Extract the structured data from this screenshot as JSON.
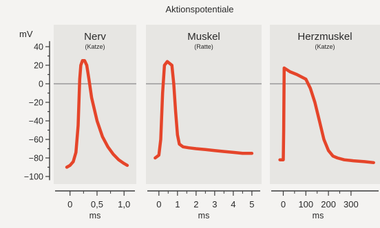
{
  "figure": {
    "title": "Aktionspotentiale",
    "y_unit": "mV",
    "x_unit": "ms"
  },
  "colors": {
    "background": "#f4f3f1",
    "panel": "#e7e6e3",
    "curve": "#e5452a",
    "axis": "#3a3a3a",
    "zero_line": "#8a8a8a"
  },
  "chart_data": [
    {
      "type": "line",
      "title": "Nerv",
      "subtitle": "(Katze)",
      "ylabel": "mV",
      "xlabel": "ms",
      "ylim": [
        -105,
        45
      ],
      "xlim": [
        -0.2,
        1.15
      ],
      "yticks": [
        40,
        20,
        0,
        -20,
        -40,
        -60,
        -80,
        -100
      ],
      "ytick_labels": [
        "40",
        "20",
        "0",
        "−20",
        "−40",
        "−60",
        "−80",
        "−100"
      ],
      "xticks": [
        0,
        0.5,
        1.0
      ],
      "xtick_labels": [
        "0",
        "0,5",
        "1,0"
      ],
      "series": [
        {
          "x": [
            -0.06,
            0.0,
            0.06,
            0.11,
            0.15,
            0.18,
            0.2,
            0.23,
            0.27,
            0.31,
            0.35,
            0.4,
            0.5,
            0.6,
            0.7,
            0.8,
            0.9,
            1.0,
            1.06
          ],
          "y": [
            -90,
            -88,
            -84,
            -74,
            -45,
            5,
            20,
            25,
            25,
            20,
            5,
            -15,
            -40,
            -57,
            -68,
            -76,
            -82,
            -86,
            -88
          ]
        }
      ]
    },
    {
      "type": "line",
      "title": "Muskel",
      "subtitle": "(Ratte)",
      "xlabel": "ms",
      "ylim": [
        -105,
        45
      ],
      "xlim": [
        -0.4,
        5.3
      ],
      "xticks": [
        0,
        1,
        2,
        3,
        4,
        5
      ],
      "xtick_labels": [
        "0",
        "1",
        "2",
        "3",
        "4",
        "5"
      ],
      "series": [
        {
          "x": [
            -0.2,
            0.0,
            0.1,
            0.2,
            0.3,
            0.45,
            0.7,
            0.8,
            0.9,
            1.0,
            1.1,
            1.3,
            1.6,
            2.0,
            2.5,
            3.0,
            3.5,
            4.0,
            4.5,
            5.0
          ],
          "y": [
            -80,
            -77,
            -60,
            -10,
            20,
            24,
            20,
            0,
            -30,
            -55,
            -65,
            -68,
            -69,
            -70,
            -71,
            -72,
            -73,
            -74,
            -75,
            -75
          ]
        }
      ]
    },
    {
      "type": "line",
      "title": "Herzmuskel",
      "subtitle": "(Katze)",
      "xlabel": "ms",
      "ylim": [
        -105,
        45
      ],
      "xlim": [
        -35,
        410
      ],
      "xticks": [
        0,
        100,
        200,
        300
      ],
      "xtick_labels": [
        "0",
        "100",
        "200",
        "300"
      ],
      "series": [
        {
          "x": [
            -15,
            0,
            2,
            4,
            30,
            60,
            100,
            120,
            140,
            160,
            180,
            200,
            220,
            240,
            270,
            310,
            360,
            400
          ],
          "y": [
            -82,
            -82,
            -50,
            17,
            13,
            10,
            5,
            -5,
            -20,
            -40,
            -60,
            -72,
            -78,
            -80,
            -82,
            -83,
            -84,
            -85
          ]
        }
      ]
    }
  ]
}
